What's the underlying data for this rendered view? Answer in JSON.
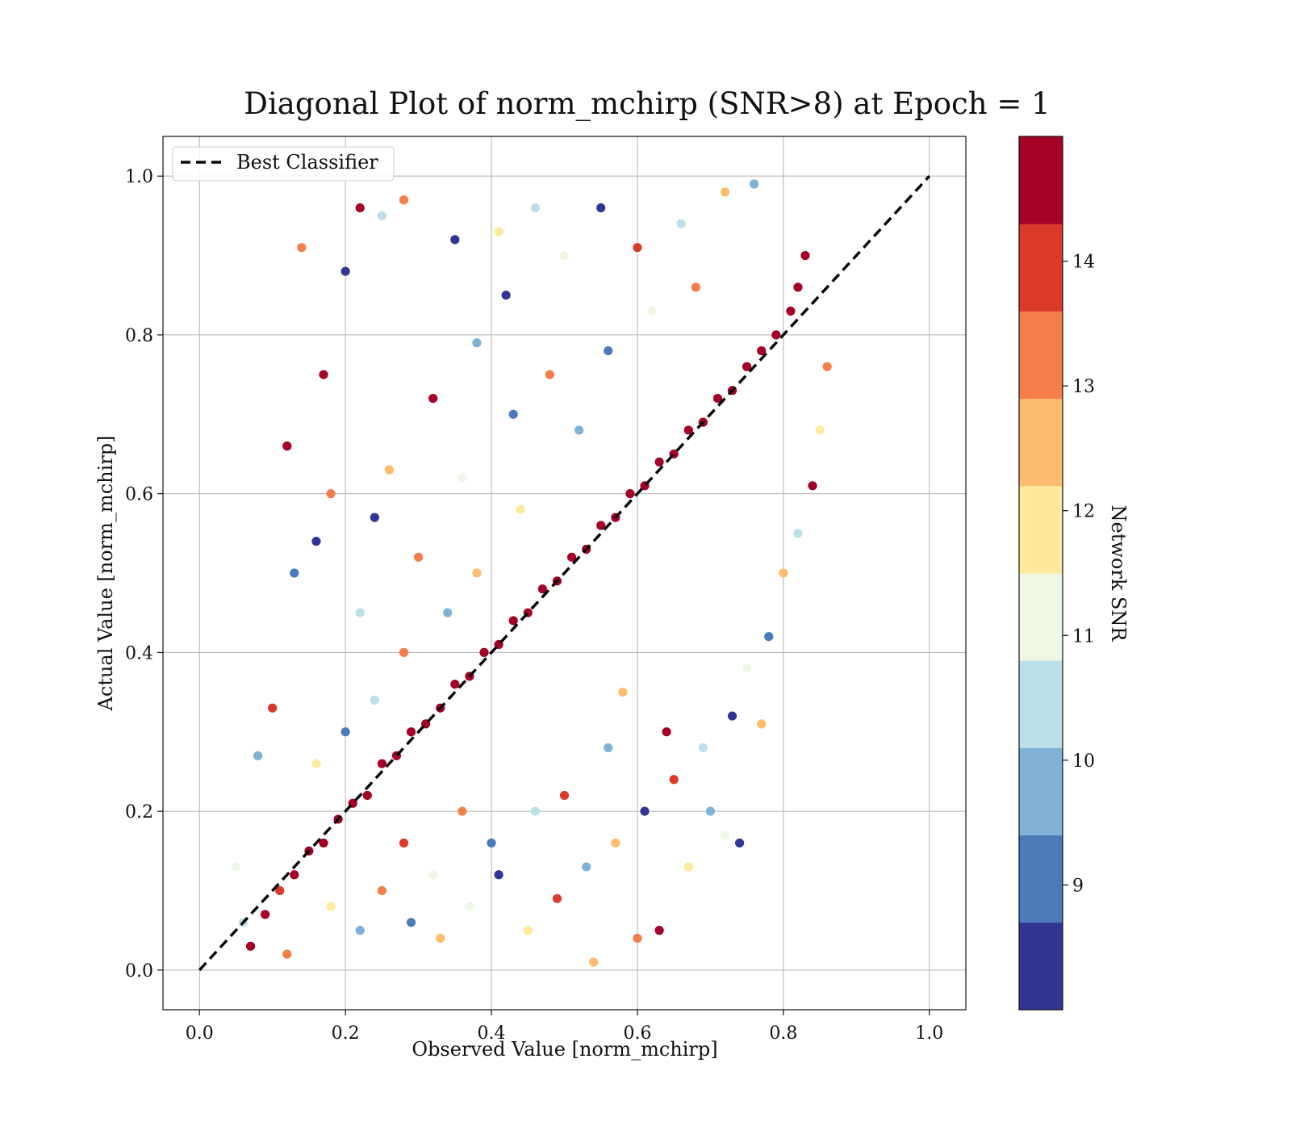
{
  "chart_data": {
    "type": "scatter",
    "title": "Diagonal Plot of norm_mchirp (SNR>8) at Epoch = 1",
    "xlabel": "Observed Value [norm_mchirp]",
    "ylabel": "Actual Value [norm_mchirp]",
    "xlim": [
      -0.05,
      1.05
    ],
    "ylim": [
      -0.05,
      1.05
    ],
    "xticks": [
      0.0,
      0.2,
      0.4,
      0.6,
      0.8,
      1.0
    ],
    "yticks": [
      0.0,
      0.2,
      0.4,
      0.6,
      0.8,
      1.0
    ],
    "xtick_labels": [
      "0.0",
      "0.2",
      "0.4",
      "0.6",
      "0.8",
      "1.0"
    ],
    "ytick_labels": [
      "0.0",
      "0.2",
      "0.4",
      "0.6",
      "0.8",
      "1.0"
    ],
    "grid": true,
    "legend": {
      "placement": "upper-left",
      "entries": [
        {
          "label": "Best Classifier",
          "style": "black dashed line"
        }
      ]
    },
    "reference_line": {
      "name": "Best Classifier",
      "x": [
        0.0,
        1.0
      ],
      "y": [
        0.0,
        1.0
      ],
      "color": "#000000",
      "dashed": true
    },
    "colorbar": {
      "label": "Network SNR",
      "range": [
        8,
        15
      ],
      "ticks": [
        9,
        10,
        11,
        12,
        13,
        14
      ],
      "tick_labels": [
        "9",
        "10",
        "11",
        "12",
        "13",
        "14"
      ],
      "colors": [
        "#313695",
        "#4a7ab7",
        "#7fb2d5",
        "#bddfeb",
        "#eef7e4",
        "#fee99d",
        "#fdbd6e",
        "#f47e4a",
        "#db392a",
        "#a50026"
      ]
    },
    "points": [
      [
        0.07,
        0.03,
        14.8
      ],
      [
        0.09,
        0.07,
        14.6
      ],
      [
        0.11,
        0.1,
        14.2
      ],
      [
        0.13,
        0.12,
        14.7
      ],
      [
        0.15,
        0.15,
        14.9
      ],
      [
        0.17,
        0.16,
        14.5
      ],
      [
        0.19,
        0.19,
        14.8
      ],
      [
        0.21,
        0.21,
        14.3
      ],
      [
        0.23,
        0.22,
        14.9
      ],
      [
        0.25,
        0.26,
        14.6
      ],
      [
        0.27,
        0.27,
        14.8
      ],
      [
        0.29,
        0.3,
        14.7
      ],
      [
        0.31,
        0.31,
        14.9
      ],
      [
        0.33,
        0.33,
        14.4
      ],
      [
        0.35,
        0.36,
        14.8
      ],
      [
        0.37,
        0.37,
        14.9
      ],
      [
        0.39,
        0.4,
        14.6
      ],
      [
        0.41,
        0.41,
        14.9
      ],
      [
        0.43,
        0.44,
        14.7
      ],
      [
        0.45,
        0.45,
        14.8
      ],
      [
        0.47,
        0.48,
        14.9
      ],
      [
        0.49,
        0.49,
        14.5
      ],
      [
        0.51,
        0.52,
        14.9
      ],
      [
        0.53,
        0.53,
        14.8
      ],
      [
        0.55,
        0.56,
        14.7
      ],
      [
        0.57,
        0.57,
        14.9
      ],
      [
        0.59,
        0.6,
        14.6
      ],
      [
        0.61,
        0.61,
        14.9
      ],
      [
        0.63,
        0.64,
        14.8
      ],
      [
        0.65,
        0.65,
        14.7
      ],
      [
        0.67,
        0.68,
        14.9
      ],
      [
        0.69,
        0.69,
        14.5
      ],
      [
        0.71,
        0.72,
        14.9
      ],
      [
        0.73,
        0.73,
        14.8
      ],
      [
        0.75,
        0.76,
        14.7
      ],
      [
        0.77,
        0.78,
        14.9
      ],
      [
        0.79,
        0.8,
        14.6
      ],
      [
        0.81,
        0.83,
        14.9
      ],
      [
        0.82,
        0.86,
        14.8
      ],
      [
        0.83,
        0.9,
        14.7
      ],
      [
        0.12,
        0.66,
        14.8
      ],
      [
        0.17,
        0.75,
        14.6
      ],
      [
        0.14,
        0.91,
        13.2
      ],
      [
        0.22,
        0.96,
        14.7
      ],
      [
        0.2,
        0.88,
        8.3
      ],
      [
        0.25,
        0.95,
        10.2
      ],
      [
        0.16,
        0.54,
        8.4
      ],
      [
        0.13,
        0.5,
        9.0
      ],
      [
        0.18,
        0.6,
        13.5
      ],
      [
        0.1,
        0.33,
        14.1
      ],
      [
        0.08,
        0.27,
        9.6
      ],
      [
        0.22,
        0.45,
        10.3
      ],
      [
        0.28,
        0.97,
        13.0
      ],
      [
        0.35,
        0.92,
        8.4
      ],
      [
        0.41,
        0.93,
        12.1
      ],
      [
        0.55,
        0.96,
        8.2
      ],
      [
        0.5,
        0.9,
        11.3
      ],
      [
        0.46,
        0.96,
        10.4
      ],
      [
        0.42,
        0.85,
        8.6
      ],
      [
        0.38,
        0.79,
        9.4
      ],
      [
        0.32,
        0.72,
        14.3
      ],
      [
        0.26,
        0.63,
        12.4
      ],
      [
        0.24,
        0.57,
        8.5
      ],
      [
        0.3,
        0.52,
        13.6
      ],
      [
        0.36,
        0.62,
        10.8
      ],
      [
        0.43,
        0.7,
        9.1
      ],
      [
        0.48,
        0.75,
        12.9
      ],
      [
        0.6,
        0.91,
        14.2
      ],
      [
        0.66,
        0.94,
        10.6
      ],
      [
        0.72,
        0.98,
        12.7
      ],
      [
        0.76,
        0.99,
        9.8
      ],
      [
        0.68,
        0.86,
        13.4
      ],
      [
        0.62,
        0.83,
        11.2
      ],
      [
        0.56,
        0.78,
        8.8
      ],
      [
        0.52,
        0.68,
        10.1
      ],
      [
        0.44,
        0.58,
        11.6
      ],
      [
        0.38,
        0.5,
        12.6
      ],
      [
        0.34,
        0.45,
        9.9
      ],
      [
        0.28,
        0.4,
        13.1
      ],
      [
        0.24,
        0.34,
        10.5
      ],
      [
        0.2,
        0.3,
        8.9
      ],
      [
        0.16,
        0.26,
        12.2
      ],
      [
        0.25,
        0.1,
        13.3
      ],
      [
        0.29,
        0.06,
        9.2
      ],
      [
        0.33,
        0.04,
        12.5
      ],
      [
        0.37,
        0.08,
        10.9
      ],
      [
        0.41,
        0.12,
        8.4
      ],
      [
        0.45,
        0.05,
        11.8
      ],
      [
        0.49,
        0.09,
        13.7
      ],
      [
        0.53,
        0.13,
        9.6
      ],
      [
        0.57,
        0.16,
        12.3
      ],
      [
        0.61,
        0.2,
        8.7
      ],
      [
        0.65,
        0.24,
        13.9
      ],
      [
        0.69,
        0.28,
        10.2
      ],
      [
        0.73,
        0.32,
        8.3
      ],
      [
        0.75,
        0.38,
        11.4
      ],
      [
        0.78,
        0.42,
        9.1
      ],
      [
        0.8,
        0.5,
        12.8
      ],
      [
        0.82,
        0.55,
        10.4
      ],
      [
        0.84,
        0.61,
        14.5
      ],
      [
        0.86,
        0.76,
        13.2
      ],
      [
        0.85,
        0.68,
        12.1
      ],
      [
        0.63,
        0.05,
        14.6
      ],
      [
        0.6,
        0.04,
        13.2
      ],
      [
        0.54,
        0.01,
        12.4
      ],
      [
        0.67,
        0.13,
        11.6
      ],
      [
        0.74,
        0.16,
        8.3
      ],
      [
        0.72,
        0.17,
        11.3
      ],
      [
        0.77,
        0.31,
        12.5
      ],
      [
        0.7,
        0.2,
        9.4
      ],
      [
        0.64,
        0.3,
        14.4
      ],
      [
        0.58,
        0.35,
        12.7
      ],
      [
        0.56,
        0.28,
        9.7
      ],
      [
        0.5,
        0.22,
        13.8
      ],
      [
        0.46,
        0.2,
        10.6
      ],
      [
        0.4,
        0.16,
        8.8
      ],
      [
        0.36,
        0.2,
        12.9
      ],
      [
        0.32,
        0.12,
        11.1
      ],
      [
        0.28,
        0.16,
        14.1
      ],
      [
        0.22,
        0.05,
        9.5
      ],
      [
        0.18,
        0.08,
        12.2
      ],
      [
        0.12,
        0.02,
        13.6
      ],
      [
        0.06,
        0.06,
        10.4
      ],
      [
        0.05,
        0.13,
        11.0
      ]
    ]
  }
}
